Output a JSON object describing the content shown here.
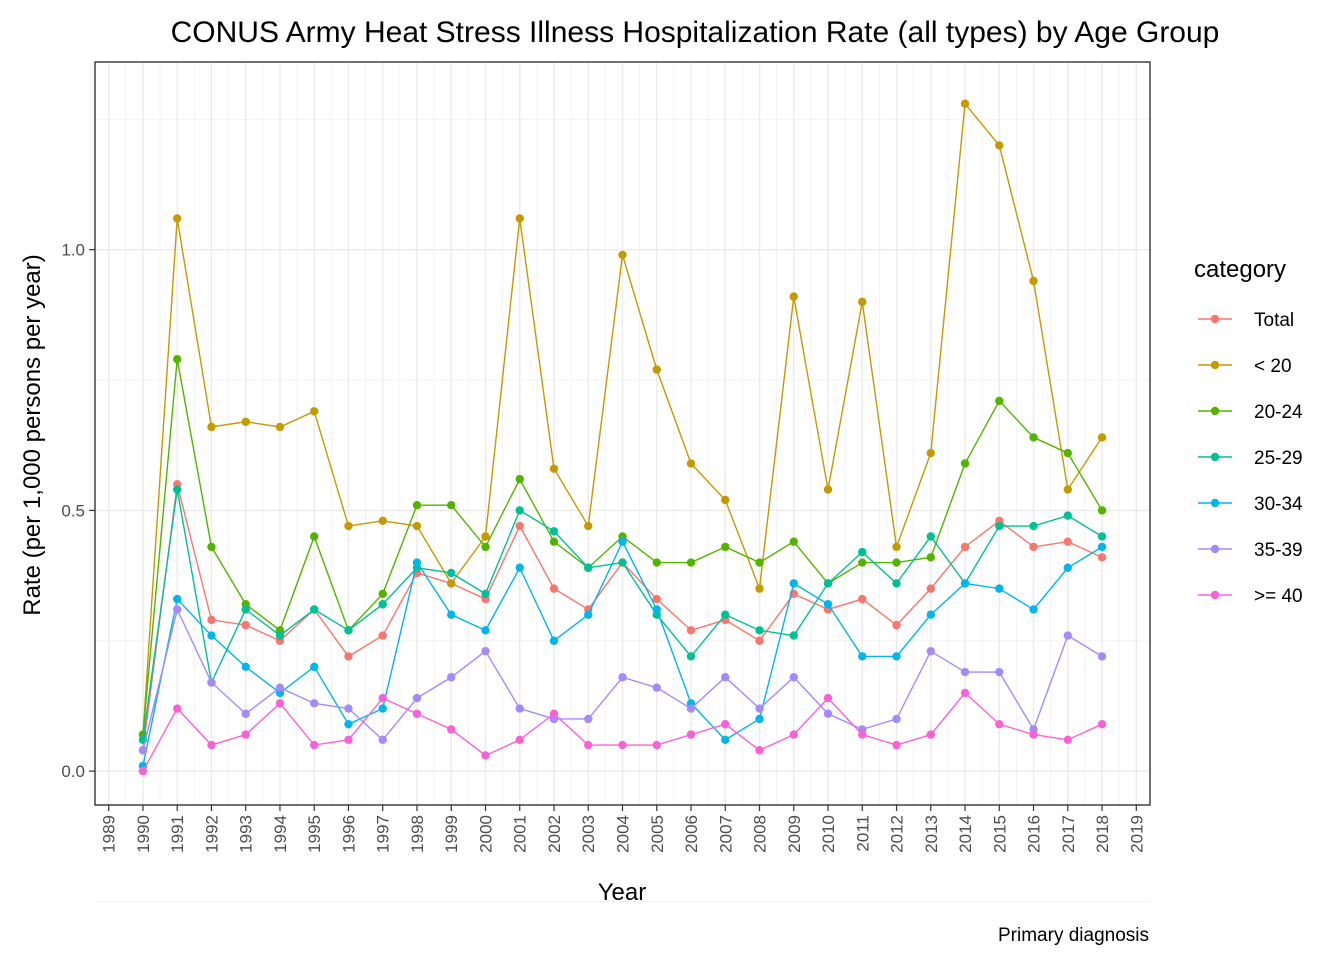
{
  "chart_data": {
    "type": "line",
    "title": "CONUS Army Heat Stress Illness Hospitalization Rate (all types) by Age Group",
    "xlabel": "Year",
    "ylabel": "Rate (per 1,000 persons per year)",
    "caption": "Primary diagnosis",
    "xlim": [
      1988.6,
      2019.4
    ],
    "ylim": [
      -0.065,
      1.36
    ],
    "x_ticks": [
      1989,
      1990,
      1991,
      1992,
      1993,
      1994,
      1995,
      1996,
      1997,
      1998,
      1999,
      2000,
      2001,
      2002,
      2003,
      2004,
      2005,
      2006,
      2007,
      2008,
      2009,
      2010,
      2011,
      2012,
      2013,
      2014,
      2015,
      2016,
      2017,
      2018,
      2019
    ],
    "y_ticks": [
      0.0,
      0.5,
      1.0
    ],
    "y_tick_labels": [
      "0.0",
      "0.5",
      "1.0"
    ],
    "grid": true,
    "legend_title": "category",
    "legend_position": "right",
    "x": [
      1990,
      1991,
      1992,
      1993,
      1994,
      1995,
      1996,
      1997,
      1998,
      1999,
      2000,
      2001,
      2002,
      2003,
      2004,
      2005,
      2006,
      2007,
      2008,
      2009,
      2010,
      2011,
      2012,
      2013,
      2014,
      2015,
      2016,
      2017,
      2018
    ],
    "series": [
      {
        "name": "Total",
        "color": "#F8766D",
        "values": [
          0.04,
          0.55,
          0.29,
          0.28,
          0.25,
          0.31,
          0.22,
          0.26,
          0.38,
          0.36,
          0.33,
          0.47,
          0.35,
          0.31,
          0.4,
          0.33,
          0.27,
          0.29,
          0.25,
          0.34,
          0.31,
          0.33,
          0.28,
          0.35,
          0.43,
          0.48,
          0.43,
          0.44,
          0.41
        ]
      },
      {
        "name": "< 20",
        "color": "#C49A00",
        "values": [
          0.07,
          1.06,
          0.66,
          0.67,
          0.66,
          0.69,
          0.47,
          0.48,
          0.47,
          0.36,
          0.45,
          1.06,
          0.58,
          0.47,
          0.99,
          0.77,
          0.59,
          0.52,
          0.35,
          0.91,
          0.54,
          0.9,
          0.43,
          0.61,
          1.28,
          1.2,
          0.94,
          0.54,
          0.64
        ]
      },
      {
        "name": "20-24",
        "color": "#53B400",
        "values": [
          0.07,
          0.79,
          0.43,
          0.32,
          0.27,
          0.45,
          0.27,
          0.34,
          0.51,
          0.51,
          0.43,
          0.56,
          0.44,
          0.39,
          0.45,
          0.4,
          0.4,
          0.43,
          0.4,
          0.44,
          0.36,
          0.4,
          0.4,
          0.41,
          0.59,
          0.71,
          0.64,
          0.61,
          0.5
        ]
      },
      {
        "name": "25-29",
        "color": "#00C094",
        "values": [
          0.06,
          0.54,
          0.17,
          0.31,
          0.26,
          0.31,
          0.27,
          0.32,
          0.39,
          0.38,
          0.34,
          0.5,
          0.46,
          0.39,
          0.4,
          0.3,
          0.22,
          0.3,
          0.27,
          0.26,
          0.36,
          0.42,
          0.36,
          0.45,
          0.36,
          0.47,
          0.47,
          0.49,
          0.45
        ]
      },
      {
        "name": "30-34",
        "color": "#00B6EB",
        "values": [
          0.01,
          0.33,
          0.26,
          0.2,
          0.15,
          0.2,
          0.09,
          0.12,
          0.4,
          0.3,
          0.27,
          0.39,
          0.25,
          0.3,
          0.44,
          0.31,
          0.13,
          0.06,
          0.1,
          0.36,
          0.32,
          0.22,
          0.22,
          0.3,
          0.36,
          0.35,
          0.31,
          0.39,
          0.43
        ]
      },
      {
        "name": "35-39",
        "color": "#A58AFF",
        "values": [
          0.04,
          0.31,
          0.17,
          0.11,
          0.16,
          0.13,
          0.12,
          0.06,
          0.14,
          0.18,
          0.23,
          0.12,
          0.1,
          0.1,
          0.18,
          0.16,
          0.12,
          0.18,
          0.12,
          0.18,
          0.11,
          0.08,
          0.1,
          0.23,
          0.19,
          0.19,
          0.08,
          0.26,
          0.22
        ]
      },
      {
        "name": ">= 40",
        "color": "#FB61D7",
        "values": [
          0.0,
          0.12,
          0.05,
          0.07,
          0.13,
          0.05,
          0.06,
          0.14,
          0.11,
          0.08,
          0.03,
          0.06,
          0.11,
          0.05,
          0.05,
          0.05,
          0.07,
          0.09,
          0.04,
          0.07,
          0.14,
          0.07,
          0.05,
          0.07,
          0.15,
          0.09,
          0.07,
          0.06,
          0.09
        ]
      }
    ]
  }
}
